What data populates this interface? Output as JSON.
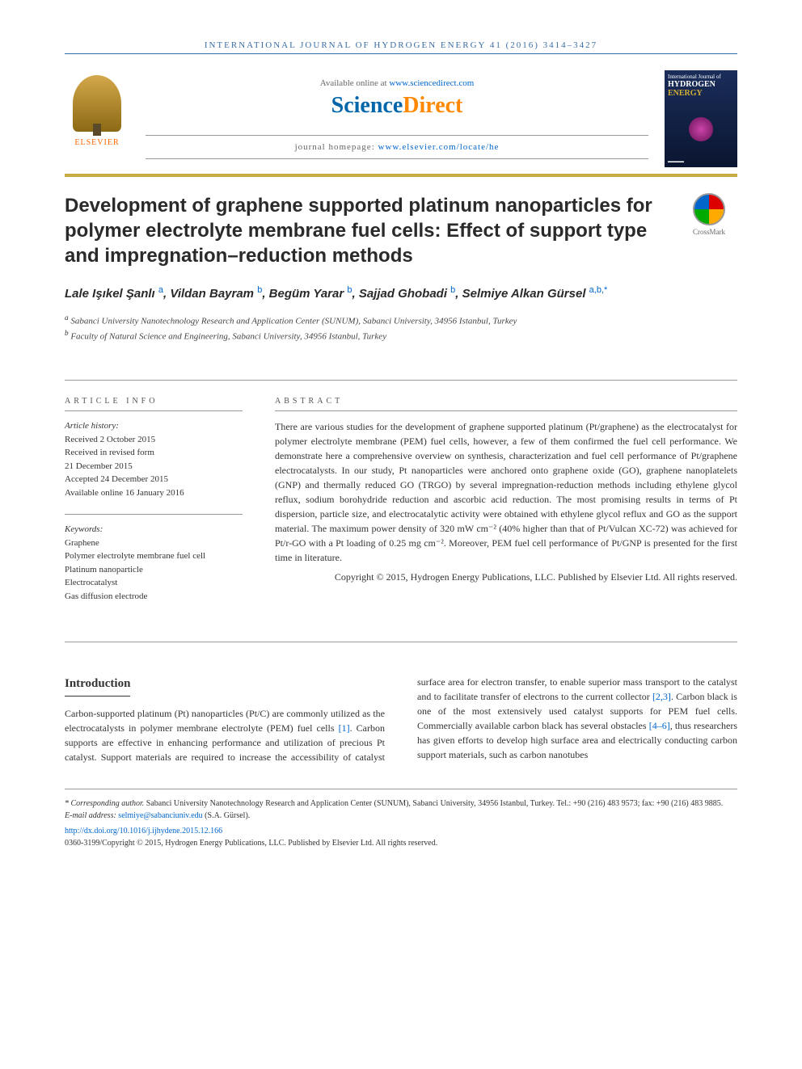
{
  "journal_header": "INTERNATIONAL JOURNAL OF HYDROGEN ENERGY 41 (2016) 3414–3427",
  "availability": {
    "prefix": "Available online at ",
    "url": "www.sciencedirect.com"
  },
  "brand": {
    "part1": "Science",
    "part2": "Direct"
  },
  "homepage": {
    "prefix": "journal homepage: ",
    "url": "www.elsevier.com/locate/he"
  },
  "elsevier_label": "ELSEVIER",
  "cover": {
    "top": "International Journal of",
    "title_line1": "HYDROGEN",
    "title_line2": "ENERGY"
  },
  "crossmark": "CrossMark",
  "title": "Development of graphene supported platinum nanoparticles for polymer electrolyte membrane fuel cells: Effect of support type and impregnation–reduction methods",
  "authors_html": "Lale Işıkel Şanlı <sup>a</sup>, Vildan Bayram <sup>b</sup>, Begüm Yarar <sup>b</sup>, Sajjad Ghobadi <sup>b</sup>, Selmiye Alkan Gürsel <sup>a,b,*</sup>",
  "affiliations": {
    "a": "Sabanci University Nanotechnology Research and Application Center (SUNUM), Sabanci University, 34956 Istanbul, Turkey",
    "b": "Faculty of Natural Science and Engineering, Sabanci University, 34956 Istanbul, Turkey"
  },
  "info": {
    "heading": "ARTICLE INFO",
    "history_label": "Article history:",
    "received": "Received 2 October 2015",
    "revised1": "Received in revised form",
    "revised2": "21 December 2015",
    "accepted": "Accepted 24 December 2015",
    "online": "Available online 16 January 2016",
    "keywords_label": "Keywords:",
    "keywords": [
      "Graphene",
      "Polymer electrolyte membrane fuel cell",
      "Platinum nanoparticle",
      "Electrocatalyst",
      "Gas diffusion electrode"
    ]
  },
  "abstract": {
    "heading": "ABSTRACT",
    "text": "There are various studies for the development of graphene supported platinum (Pt/graphene) as the electrocatalyst for polymer electrolyte membrane (PEM) fuel cells, however, a few of them confirmed the fuel cell performance. We demonstrate here a comprehensive overview on synthesis, characterization and fuel cell performance of Pt/graphene electrocatalysts. In our study, Pt nanoparticles were anchored onto graphene oxide (GO), graphene nanoplatelets (GNP) and thermally reduced GO (TRGO) by several impregnation-reduction methods including ethylene glycol reflux, sodium borohydride reduction and ascorbic acid reduction. The most promising results in terms of Pt dispersion, particle size, and electrocatalytic activity were obtained with ethylene glycol reflux and GO as the support material. The maximum power density of 320 mW cm⁻² (40% higher than that of Pt/Vulcan XC-72) was achieved for Pt/r-GO with a Pt loading of 0.25 mg cm⁻². Moreover, PEM fuel cell performance of Pt/GNP is presented for the first time in literature.",
    "copyright": "Copyright © 2015, Hydrogen Energy Publications, LLC. Published by Elsevier Ltd. All rights reserved."
  },
  "intro": {
    "heading": "Introduction",
    "col1_part1": "Carbon-supported platinum (Pt) nanoparticles (Pt/C) are commonly utilized as the electrocatalysts in polymer membrane electrolyte (PEM) fuel cells ",
    "ref1": "[1]",
    "col1_part2": ". Carbon supports are effective in enhancing performance and utilization of precious Pt catalyst. Support materials are required to ",
    "col2_part1": "increase the accessibility of catalyst surface area for electron transfer, to enable superior mass transport to the catalyst and to facilitate transfer of electrons to the current collector ",
    "ref23": "[2,3]",
    "col2_part2": ". Carbon black is one of the most extensively used catalyst supports for PEM fuel cells. Commercially available carbon black has several obstacles ",
    "ref46": "[4–6]",
    "col2_part3": ", thus researchers has given efforts to develop high surface area and electrically conducting carbon support materials, such as carbon nanotubes"
  },
  "footer": {
    "corresponding_label": "* Corresponding author.",
    "corresponding_text": " Sabanci University Nanotechnology Research and Application Center (SUNUM), Sabanci University, 34956 Istanbul, Turkey. Tel.: +90 (216) 483 9573; fax: +90 (216) 483 9885.",
    "email_label": "E-mail address: ",
    "email": "selmiye@sabanciuniv.edu",
    "email_suffix": " (S.A. Gürsel).",
    "doi": "http://dx.doi.org/10.1016/j.ijhydene.2015.12.166",
    "issn": "0360-3199/Copyright © 2015, Hydrogen Energy Publications, LLC. Published by Elsevier Ltd. All rights reserved."
  },
  "colors": {
    "link": "#0066cc",
    "gold": "#c9a942",
    "header_blue": "#3b6ea5"
  }
}
